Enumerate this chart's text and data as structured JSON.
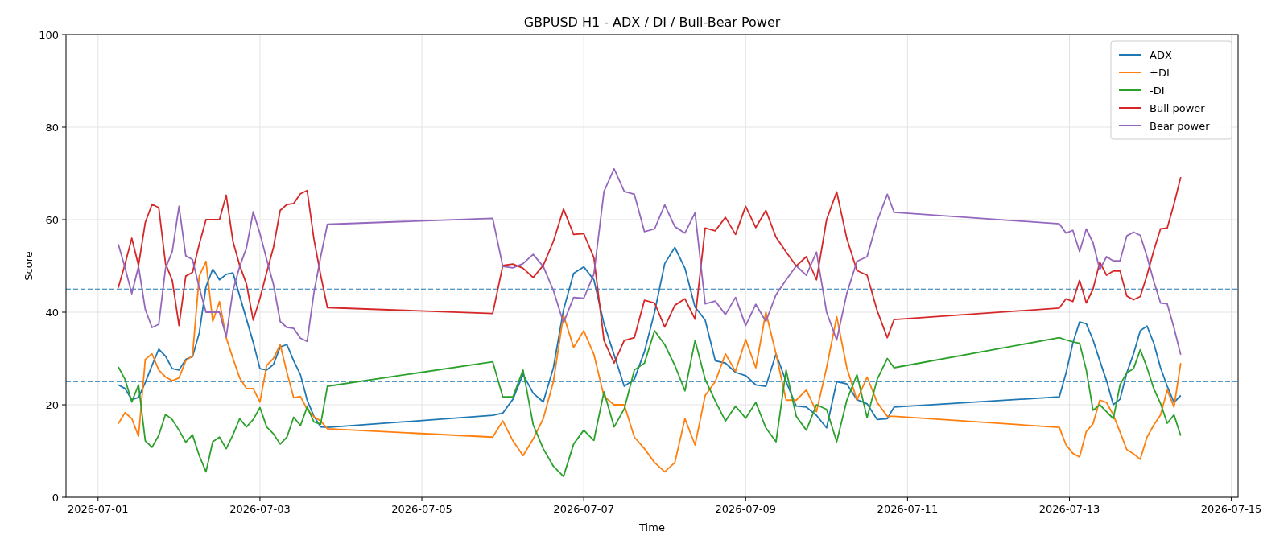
{
  "chart_data": {
    "type": "line",
    "title": "GBPUSD H1 - ADX / DI / Bull-Bear Power",
    "xlabel": "Time",
    "ylabel": "Score",
    "x": [
      "2026-07-01T06:00",
      "2026-07-01T08:00",
      "2026-07-01T10:00",
      "2026-07-01T12:00",
      "2026-07-01T14:00",
      "2026-07-01T16:00",
      "2026-07-01T18:00",
      "2026-07-01T20:00",
      "2026-07-01T22:00",
      "2026-07-02T00:00",
      "2026-07-02T02:00",
      "2026-07-02T04:00",
      "2026-07-02T06:00",
      "2026-07-02T08:00",
      "2026-07-02T10:00",
      "2026-07-02T12:00",
      "2026-07-02T14:00",
      "2026-07-02T16:00",
      "2026-07-02T18:00",
      "2026-07-02T20:00",
      "2026-07-02T22:00",
      "2026-07-03T00:00",
      "2026-07-03T02:00",
      "2026-07-03T04:00",
      "2026-07-03T06:00",
      "2026-07-03T08:00",
      "2026-07-03T10:00",
      "2026-07-03T12:00",
      "2026-07-03T14:00",
      "2026-07-03T16:00",
      "2026-07-03T18:00",
      "2026-07-03T20:00",
      "2026-07-05T21:00",
      "2026-07-06T00:00",
      "2026-07-06T03:00",
      "2026-07-06T06:00",
      "2026-07-06T09:00",
      "2026-07-06T12:00",
      "2026-07-06T15:00",
      "2026-07-06T18:00",
      "2026-07-06T21:00",
      "2026-07-07T00:00",
      "2026-07-07T03:00",
      "2026-07-07T06:00",
      "2026-07-07T09:00",
      "2026-07-07T12:00",
      "2026-07-07T15:00",
      "2026-07-07T18:00",
      "2026-07-07T21:00",
      "2026-07-08T00:00",
      "2026-07-08T03:00",
      "2026-07-08T06:00",
      "2026-07-08T09:00",
      "2026-07-08T12:00",
      "2026-07-08T15:00",
      "2026-07-08T18:00",
      "2026-07-08T21:00",
      "2026-07-09T00:00",
      "2026-07-09T03:00",
      "2026-07-09T06:00",
      "2026-07-09T09:00",
      "2026-07-09T12:00",
      "2026-07-09T15:00",
      "2026-07-09T18:00",
      "2026-07-09T21:00",
      "2026-07-10T00:00",
      "2026-07-10T03:00",
      "2026-07-10T06:00",
      "2026-07-10T09:00",
      "2026-07-10T12:00",
      "2026-07-10T15:00",
      "2026-07-10T18:00",
      "2026-07-10T20:00",
      "2026-07-12T21:00",
      "2026-07-12T23:00",
      "2026-07-13T01:00",
      "2026-07-13T03:00",
      "2026-07-13T05:00",
      "2026-07-13T07:00",
      "2026-07-13T09:00",
      "2026-07-13T11:00",
      "2026-07-13T13:00",
      "2026-07-13T15:00",
      "2026-07-13T17:00",
      "2026-07-13T19:00",
      "2026-07-13T21:00",
      "2026-07-13T23:00",
      "2026-07-14T01:00",
      "2026-07-14T03:00",
      "2026-07-14T05:00",
      "2026-07-14T07:00",
      "2026-07-14T09:00"
    ],
    "series": [
      {
        "name": "ADX",
        "color": "#1f77b4",
        "values": [
          24.3,
          23.5,
          21.1,
          21.6,
          24.8,
          28.5,
          32.0,
          30.5,
          27.8,
          27.5,
          29.8,
          30.4,
          35.5,
          45.5,
          49.3,
          47.0,
          48.2,
          48.5,
          43.5,
          38.5,
          33.5,
          27.8,
          27.5,
          28.7,
          32.5,
          33.0,
          29.5,
          26.5,
          21.0,
          17.5,
          15.2,
          15.1,
          17.7,
          18.2,
          21.2,
          26.6,
          22.5,
          20.6,
          28.0,
          40.5,
          48.4,
          49.8,
          47.0,
          37.5,
          30.8,
          24.0,
          25.5,
          31.5,
          40.0,
          50.5,
          54.0,
          49.5,
          41.1,
          38.3,
          29.5,
          29.0,
          27.0,
          26.3,
          24.3,
          24.0,
          31.0,
          25.0,
          19.7,
          19.5,
          17.7,
          15.0,
          25.0,
          24.5,
          21.1,
          20.2,
          16.8,
          17.0,
          19.5,
          21.7,
          26.9,
          33.3,
          37.9,
          37.5,
          34.0,
          29.5,
          25.2,
          20.0,
          21.2,
          26.9,
          31.0,
          36.0,
          37.0,
          33.3,
          28.0,
          24.0,
          20.5,
          22.0
        ]
      },
      {
        "name": "+DI",
        "color": "#ff7f0e",
        "values": [
          15.9,
          18.3,
          17.0,
          13.2,
          29.8,
          31.0,
          27.5,
          26.0,
          25.2,
          25.8,
          29.5,
          30.6,
          47.8,
          51.0,
          38.0,
          42.3,
          34.5,
          30.0,
          25.8,
          23.5,
          23.5,
          20.6,
          28.5,
          30.0,
          33.0,
          27.0,
          21.5,
          21.8,
          19.0,
          17.4,
          16.5,
          14.8,
          13.0,
          16.5,
          12.2,
          9.0,
          12.6,
          17.0,
          25.0,
          39.4,
          32.4,
          36.0,
          30.9,
          21.8,
          20.0,
          20.0,
          13.0,
          10.5,
          7.5,
          5.5,
          7.5,
          17.0,
          11.3,
          22.0,
          25.0,
          31.0,
          27.2,
          34.1,
          28.0,
          40.0,
          31.0,
          21.0,
          21.0,
          23.2,
          18.5,
          28.0,
          39.0,
          28.0,
          21.0,
          26.0,
          20.5,
          17.5,
          17.5,
          15.1,
          11.3,
          9.5,
          8.7,
          14.2,
          15.9,
          21.0,
          20.5,
          17.8,
          14.1,
          10.3,
          9.4,
          8.2,
          13.0,
          15.6,
          17.8,
          23.2,
          19.5,
          29.0
        ]
      },
      {
        "name": "-DI",
        "color": "#2ca02c",
        "values": [
          28.2,
          25.5,
          20.6,
          24.3,
          12.2,
          10.8,
          13.4,
          17.9,
          16.8,
          14.5,
          11.9,
          13.5,
          9.0,
          5.5,
          12.0,
          13.0,
          10.5,
          13.5,
          17.0,
          15.2,
          16.8,
          19.4,
          15.2,
          13.7,
          11.5,
          13.0,
          17.3,
          15.5,
          19.5,
          16.3,
          15.8,
          24.0,
          29.3,
          21.7,
          21.7,
          27.5,
          15.7,
          10.5,
          6.7,
          4.5,
          11.5,
          14.5,
          12.3,
          22.8,
          15.2,
          19.1,
          27.5,
          29.0,
          36.0,
          33.0,
          28.5,
          23.0,
          33.9,
          25.5,
          20.8,
          16.5,
          19.7,
          17.1,
          20.5,
          15.0,
          12.0,
          27.5,
          17.5,
          14.5,
          20.0,
          19.0,
          12.0,
          21.0,
          26.5,
          17.2,
          25.5,
          30.0,
          28.0,
          34.5,
          34.0,
          33.6,
          33.3,
          27.5,
          18.8,
          20.0,
          18.5,
          17.0,
          24.3,
          26.9,
          27.8,
          31.9,
          28.0,
          23.5,
          20.3,
          16.0,
          17.8,
          13.3
        ]
      },
      {
        "name": "Bull power",
        "color": "#d62728",
        "values": [
          45.3,
          50.4,
          56.0,
          50.1,
          59.4,
          63.3,
          62.6,
          50.5,
          46.9,
          37.1,
          47.8,
          48.6,
          54.7,
          60.0,
          60.0,
          60.0,
          65.3,
          55.3,
          50.1,
          46.1,
          38.3,
          43.0,
          48.6,
          54.0,
          62.0,
          63.3,
          63.5,
          65.6,
          66.3,
          55.8,
          48.0,
          41.0,
          39.7,
          50.1,
          50.4,
          49.5,
          47.5,
          50.1,
          55.3,
          62.3,
          56.8,
          57.0,
          51.8,
          33.9,
          29.0,
          33.9,
          34.5,
          42.6,
          42.0,
          36.8,
          41.5,
          42.9,
          38.5,
          58.2,
          57.6,
          60.5,
          56.8,
          62.9,
          58.3,
          62.0,
          56.2,
          53.0,
          50.0,
          52.0,
          47.0,
          60.0,
          66.0,
          55.9,
          49.0,
          48.0,
          40.3,
          34.5,
          38.4,
          40.9,
          42.9,
          42.3,
          46.9,
          42.0,
          45.0,
          50.8,
          48.0,
          48.9,
          48.9,
          43.5,
          42.7,
          43.4,
          48.0,
          53.3,
          58.0,
          58.2,
          63.4,
          69.2
        ]
      },
      {
        "name": "Bear power",
        "color": "#9467bd",
        "values": [
          54.7,
          49.6,
          44.0,
          49.9,
          40.6,
          36.7,
          37.4,
          49.5,
          53.1,
          62.9,
          52.2,
          51.4,
          45.3,
          40.0,
          40.0,
          40.0,
          34.7,
          44.7,
          49.9,
          53.9,
          61.7,
          57.0,
          51.4,
          46.0,
          38.0,
          36.7,
          36.5,
          34.4,
          33.7,
          44.2,
          52.0,
          59.0,
          60.3,
          49.9,
          49.6,
          50.5,
          52.5,
          49.9,
          44.7,
          37.7,
          43.2,
          43.0,
          48.2,
          66.1,
          71.0,
          66.1,
          65.5,
          57.4,
          58.0,
          63.2,
          58.5,
          57.1,
          61.5,
          41.8,
          42.4,
          39.5,
          43.2,
          37.1,
          41.7,
          38.0,
          43.8,
          47.0,
          50.0,
          48.0,
          53.0,
          40.0,
          34.0,
          44.1,
          51.0,
          52.0,
          59.7,
          65.5,
          61.6,
          59.1,
          57.1,
          57.7,
          53.1,
          58.0,
          55.0,
          49.2,
          52.0,
          51.1,
          51.1,
          56.5,
          57.3,
          56.6,
          52.0,
          46.7,
          42.0,
          41.8,
          36.6,
          30.8
        ]
      }
    ],
    "xlim": [
      "2026-06-30T14:30",
      "2026-07-15T02:00"
    ],
    "xticks": [
      "2026-07-01",
      "2026-07-03",
      "2026-07-05",
      "2026-07-07",
      "2026-07-09",
      "2026-07-11",
      "2026-07-13",
      "2026-07-15"
    ],
    "ylim": [
      0,
      100
    ],
    "yticks": [
      0,
      20,
      40,
      60,
      80,
      100
    ],
    "ref_lines": [
      {
        "axis": "y",
        "value": 45,
        "color": "#1f77b4",
        "line_style": "dashed"
      },
      {
        "axis": "y",
        "value": 25,
        "color": "#1f77b4",
        "line_style": "dashed"
      }
    ],
    "grid": true,
    "legend": "top right"
  }
}
